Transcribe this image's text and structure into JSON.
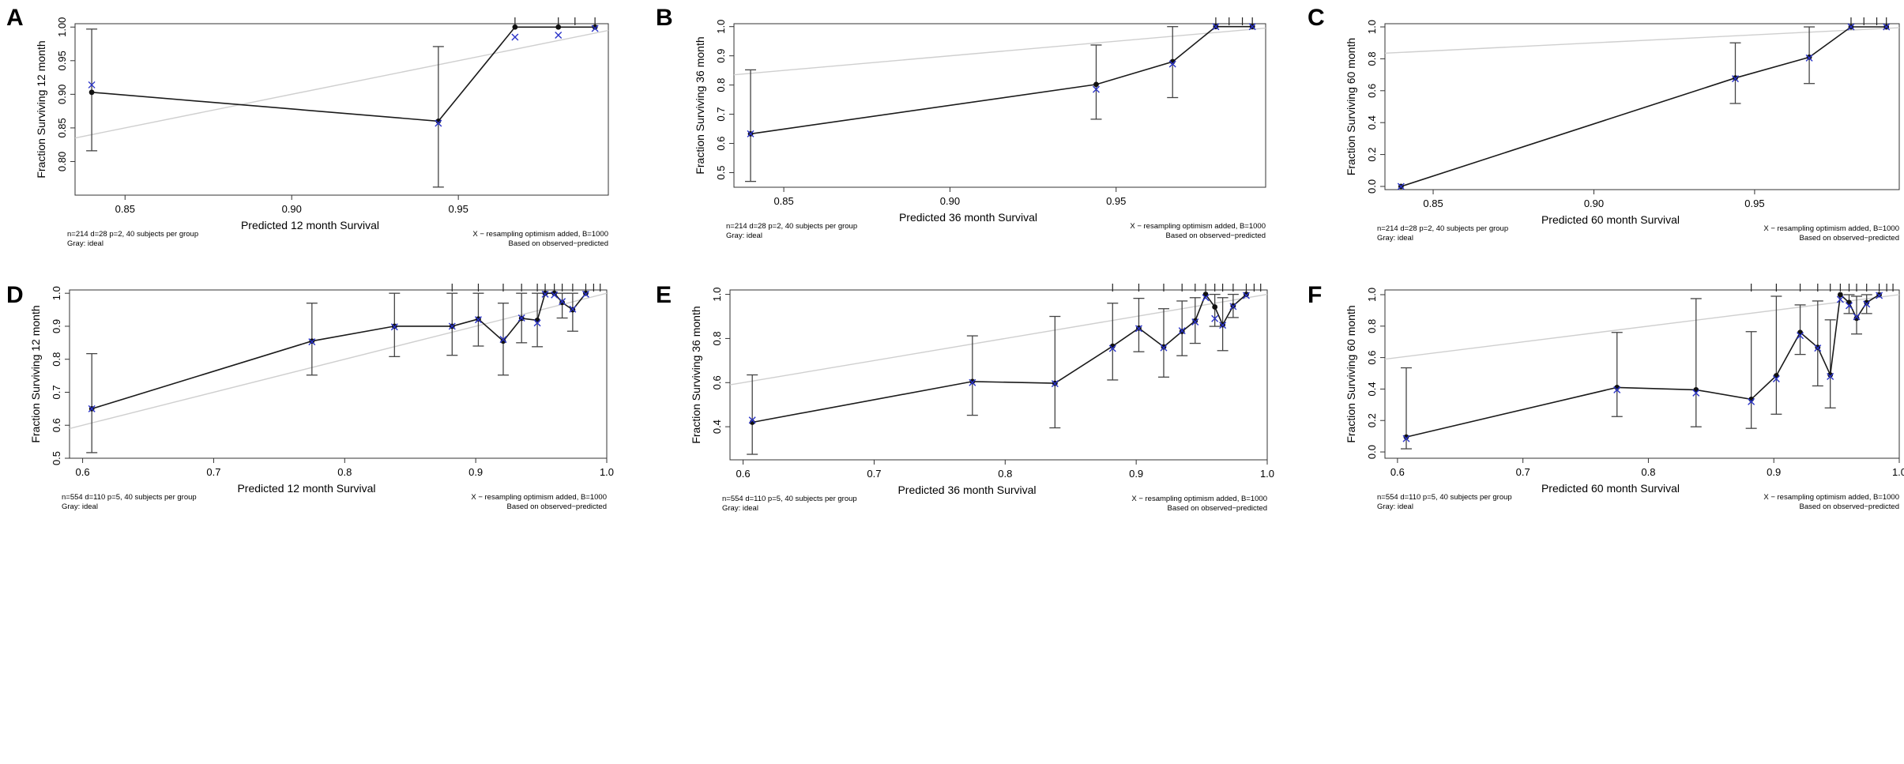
{
  "chart_data": [
    {
      "panel": "A",
      "type": "line",
      "title": "",
      "xlabel": "Predicted  12 month Survival",
      "ylabel": "Fraction Surviving 12 month",
      "xlim": [
        0.835,
        0.995
      ],
      "ylim": [
        0.75,
        1.005
      ],
      "xticks": [
        0.85,
        0.9,
        0.95
      ],
      "xtick_labels": [
        "0.85",
        "0.90",
        "0.95"
      ],
      "yticks": [
        0.8,
        0.85,
        0.9,
        0.95,
        1.0
      ],
      "ytick_labels": [
        "0.80",
        "0.85",
        "0.90",
        "0.95",
        "1.00"
      ],
      "ideal_line": [
        [
          0.835,
          0.835
        ],
        [
          0.995,
          0.995
        ]
      ],
      "series": [
        {
          "name": "observed",
          "x": [
            0.84,
            0.944,
            0.967,
            0.98,
            0.991
          ],
          "y": [
            0.903,
            0.86,
            1.0,
            1.0,
            1.0
          ]
        },
        {
          "name": "optimism-corrected (X)",
          "x": [
            0.84,
            0.944,
            0.967,
            0.98,
            0.991
          ],
          "y": [
            0.914,
            0.857,
            0.985,
            0.988,
            0.998
          ]
        }
      ],
      "error_bars": {
        "x": [
          0.84,
          0.944
        ],
        "lower": [
          0.816,
          0.762
        ],
        "upper": [
          0.997,
          0.971
        ]
      },
      "rug_x": [
        0.967,
        0.98,
        0.985,
        0.991
      ],
      "note_left_1": "n=214 d=28 p=2, 40 subjects per group",
      "note_left_2": "Gray: ideal",
      "note_right_1": "X − resampling optimism added, B=1000",
      "note_right_2": "Based on observed−predicted"
    },
    {
      "panel": "B",
      "type": "line",
      "title": "",
      "xlabel": "Predicted  36 month Survival",
      "ylabel": "Fraction Surviving 36 month",
      "xlim": [
        0.835,
        0.995
      ],
      "ylim": [
        0.45,
        1.01
      ],
      "xticks": [
        0.85,
        0.9,
        0.95
      ],
      "xtick_labels": [
        "0.85",
        "0.90",
        "0.95"
      ],
      "yticks": [
        0.5,
        0.6,
        0.7,
        0.8,
        0.9,
        1.0
      ],
      "ytick_labels": [
        "0.5",
        "0.6",
        "0.7",
        "0.8",
        "0.9",
        "1.0"
      ],
      "ideal_line": [
        [
          0.835,
          0.835
        ],
        [
          0.995,
          0.995
        ]
      ],
      "series": [
        {
          "name": "observed",
          "x": [
            0.84,
            0.944,
            0.967,
            0.98,
            0.991
          ],
          "y": [
            0.633,
            0.802,
            0.88,
            1.0,
            1.0
          ]
        },
        {
          "name": "optimism-corrected (X)",
          "x": [
            0.84,
            0.944,
            0.967,
            0.98,
            0.991
          ],
          "y": [
            0.633,
            0.785,
            0.872,
            1.0,
            1.0
          ]
        }
      ],
      "error_bars": {
        "x": [
          0.84,
          0.944,
          0.967
        ],
        "lower": [
          0.47,
          0.683,
          0.757
        ],
        "upper": [
          0.852,
          0.937,
          1.0
        ]
      },
      "rug_x": [
        0.98,
        0.984,
        0.988,
        0.991
      ],
      "note_left_1": "n=214 d=28 p=2, 40 subjects per group",
      "note_left_2": "Gray: ideal",
      "note_right_1": "X − resampling optimism added, B=1000",
      "note_right_2": "Based on observed−predicted"
    },
    {
      "panel": "C",
      "type": "line",
      "title": "",
      "xlabel": "Predicted  60 month Survival",
      "ylabel": "Fraction Surviving 60 month",
      "xlim": [
        0.835,
        0.995
      ],
      "ylim": [
        -0.02,
        1.02
      ],
      "xticks": [
        0.85,
        0.9,
        0.95
      ],
      "xtick_labels": [
        "0.85",
        "0.90",
        "0.95"
      ],
      "yticks": [
        0.0,
        0.2,
        0.4,
        0.6,
        0.8,
        1.0
      ],
      "ytick_labels": [
        "0.0",
        "0.2",
        "0.4",
        "0.6",
        "0.8",
        "1.0"
      ],
      "ideal_line": [
        [
          0.835,
          0.835
        ],
        [
          0.995,
          0.995
        ]
      ],
      "series": [
        {
          "name": "observed",
          "x": [
            0.84,
            0.944,
            0.967,
            0.98,
            0.991
          ],
          "y": [
            0.0,
            0.68,
            0.81,
            1.0,
            1.0
          ]
        },
        {
          "name": "optimism-corrected (X)",
          "x": [
            0.84,
            0.944,
            0.967,
            0.98,
            0.991
          ],
          "y": [
            0.0,
            0.675,
            0.805,
            1.0,
            1.0
          ]
        }
      ],
      "error_bars": {
        "x": [
          0.944,
          0.967
        ],
        "lower": [
          0.52,
          0.645
        ],
        "upper": [
          0.9,
          1.0
        ]
      },
      "rug_x": [
        0.98,
        0.984,
        0.988,
        0.991
      ],
      "note_left_1": "n=214 d=28 p=2, 40 subjects per group",
      "note_left_2": "Gray: ideal",
      "note_right_1": "X − resampling optimism added, B=1000",
      "note_right_2": "Based on observed−predicted"
    },
    {
      "panel": "D",
      "type": "line",
      "title": "",
      "xlabel": "Predicted  12 month Survival",
      "ylabel": "Fraction Surviving 12 month",
      "xlim": [
        0.59,
        1.0
      ],
      "ylim": [
        0.5,
        1.01
      ],
      "xticks": [
        0.6,
        0.7,
        0.8,
        0.9,
        1.0
      ],
      "xtick_labels": [
        "0.6",
        "0.7",
        "0.8",
        "0.9",
        "1.0"
      ],
      "yticks": [
        0.5,
        0.6,
        0.7,
        0.8,
        0.9,
        1.0
      ],
      "ytick_labels": [
        "0.5",
        "0.6",
        "0.7",
        "0.8",
        "0.9",
        "1.0"
      ],
      "ideal_line": [
        [
          0.59,
          0.59
        ],
        [
          1.0,
          1.0
        ]
      ],
      "series": [
        {
          "name": "observed",
          "x": [
            0.607,
            0.775,
            0.838,
            0.882,
            0.902,
            0.921,
            0.935,
            0.947,
            0.953,
            0.96,
            0.966,
            0.974,
            0.984
          ],
          "y": [
            0.65,
            0.855,
            0.9,
            0.9,
            0.922,
            0.855,
            0.924,
            0.918,
            1.0,
            1.0,
            0.972,
            0.95,
            1.0
          ]
        },
        {
          "name": "optimism-corrected (X)",
          "x": [
            0.607,
            0.775,
            0.838,
            0.882,
            0.902,
            0.921,
            0.935,
            0.947,
            0.953,
            0.96,
            0.966,
            0.974,
            0.984
          ],
          "y": [
            0.65,
            0.853,
            0.898,
            0.9,
            0.92,
            0.86,
            0.925,
            0.91,
            0.997,
            0.995,
            0.975,
            0.952,
            0.997
          ]
        }
      ],
      "error_bars": {
        "x": [
          0.607,
          0.775,
          0.838,
          0.882,
          0.902,
          0.921,
          0.935,
          0.947,
          0.966,
          0.974
        ],
        "lower": [
          0.517,
          0.752,
          0.808,
          0.812,
          0.84,
          0.752,
          0.85,
          0.838,
          0.925,
          0.885
        ],
        "upper": [
          0.817,
          0.97,
          1.0,
          1.0,
          1.0,
          0.97,
          1.0,
          1.0,
          1.0,
          1.0
        ]
      },
      "rug_x": [
        0.882,
        0.902,
        0.921,
        0.935,
        0.947,
        0.953,
        0.96,
        0.966,
        0.974,
        0.984,
        0.99,
        0.995
      ],
      "note_left_1": "n=554 d=110 p=5, 40 subjects per group",
      "note_left_2": "Gray: ideal",
      "note_right_1": "X − resampling optimism added, B=1000",
      "note_right_2": "Based on observed−predicted"
    },
    {
      "panel": "E",
      "type": "line",
      "title": "",
      "xlabel": "Predicted  36 month Survival",
      "ylabel": "Fraction Surviving 36 month",
      "xlim": [
        0.59,
        1.0
      ],
      "ylim": [
        0.25,
        1.02
      ],
      "xticks": [
        0.6,
        0.7,
        0.8,
        0.9,
        1.0
      ],
      "xtick_labels": [
        "0.6",
        "0.7",
        "0.8",
        "0.9",
        "1.0"
      ],
      "yticks": [
        0.4,
        0.6,
        0.8,
        1.0
      ],
      "ytick_labels": [
        "0.4",
        "0.6",
        "0.8",
        "1.0"
      ],
      "ideal_line": [
        [
          0.59,
          0.59
        ],
        [
          1.0,
          1.0
        ]
      ],
      "series": [
        {
          "name": "observed",
          "x": [
            0.607,
            0.775,
            0.838,
            0.882,
            0.902,
            0.921,
            0.935,
            0.945,
            0.953,
            0.96,
            0.966,
            0.974,
            0.984
          ],
          "y": [
            0.42,
            0.605,
            0.597,
            0.765,
            0.847,
            0.762,
            0.832,
            0.88,
            1.0,
            0.943,
            0.862,
            0.948,
            1.0
          ]
        },
        {
          "name": "optimism-corrected (X)",
          "x": [
            0.607,
            0.775,
            0.838,
            0.882,
            0.902,
            0.921,
            0.935,
            0.945,
            0.953,
            0.96,
            0.966,
            0.974,
            0.984
          ],
          "y": [
            0.43,
            0.6,
            0.595,
            0.755,
            0.845,
            0.758,
            0.835,
            0.875,
            0.985,
            0.89,
            0.86,
            0.945,
            0.995
          ]
        }
      ],
      "error_bars": {
        "x": [
          0.607,
          0.775,
          0.838,
          0.882,
          0.902,
          0.921,
          0.935,
          0.945,
          0.96,
          0.966,
          0.974
        ],
        "lower": [
          0.275,
          0.452,
          0.395,
          0.612,
          0.74,
          0.625,
          0.722,
          0.778,
          0.855,
          0.745,
          0.895
        ],
        "upper": [
          0.635,
          0.812,
          0.9,
          0.96,
          0.982,
          0.935,
          0.97,
          0.985,
          1.0,
          0.985,
          1.0
        ]
      },
      "rug_x": [
        0.882,
        0.902,
        0.921,
        0.935,
        0.945,
        0.953,
        0.96,
        0.966,
        0.974,
        0.984,
        0.99,
        0.995
      ],
      "note_left_1": "n=554 d=110 p=5, 40 subjects per group",
      "note_left_2": "Gray: ideal",
      "note_right_1": "X − resampling optimism added, B=1000",
      "note_right_2": "Based on observed−predicted"
    },
    {
      "panel": "F",
      "type": "line",
      "title": "",
      "xlabel": "Predicted  60 month Survival",
      "ylabel": "Fraction Surviving 60 month",
      "xlim": [
        0.59,
        1.0
      ],
      "ylim": [
        -0.04,
        1.03
      ],
      "xticks": [
        0.6,
        0.7,
        0.8,
        0.9,
        1.0
      ],
      "xtick_labels": [
        "0.6",
        "0.7",
        "0.8",
        "0.9",
        "1.0"
      ],
      "yticks": [
        0.0,
        0.2,
        0.4,
        0.6,
        0.8,
        1.0
      ],
      "ytick_labels": [
        "0.0",
        "0.2",
        "0.4",
        "0.6",
        "0.8",
        "1.0"
      ],
      "ideal_line": [
        [
          0.59,
          0.59
        ],
        [
          1.0,
          1.0
        ]
      ],
      "series": [
        {
          "name": "observed",
          "x": [
            0.607,
            0.775,
            0.838,
            0.882,
            0.902,
            0.921,
            0.935,
            0.945,
            0.953,
            0.96,
            0.966,
            0.974,
            0.984
          ],
          "y": [
            0.095,
            0.41,
            0.395,
            0.335,
            0.485,
            0.76,
            0.665,
            0.49,
            1.0,
            0.95,
            0.85,
            0.95,
            1.0
          ]
        },
        {
          "name": "optimism-corrected (X)",
          "x": [
            0.607,
            0.775,
            0.838,
            0.882,
            0.902,
            0.921,
            0.935,
            0.945,
            0.953,
            0.96,
            0.966,
            0.974,
            0.984
          ],
          "y": [
            0.085,
            0.395,
            0.375,
            0.32,
            0.465,
            0.74,
            0.66,
            0.48,
            0.97,
            0.93,
            0.86,
            0.94,
            0.995
          ]
        }
      ],
      "error_bars": {
        "x": [
          0.607,
          0.775,
          0.838,
          0.882,
          0.902,
          0.921,
          0.935,
          0.945,
          0.96,
          0.966,
          0.974
        ],
        "lower": [
          0.02,
          0.225,
          0.16,
          0.15,
          0.24,
          0.62,
          0.42,
          0.28,
          0.88,
          0.75,
          0.88
        ],
        "upper": [
          0.535,
          0.76,
          0.975,
          0.765,
          0.99,
          0.935,
          0.96,
          0.84,
          1.0,
          0.99,
          1.0
        ]
      },
      "rug_x": [
        0.882,
        0.902,
        0.921,
        0.935,
        0.945,
        0.953,
        0.96,
        0.966,
        0.974,
        0.984,
        0.99,
        0.995
      ],
      "note_left_1": "n=554 d=110 p=5, 40 subjects per group",
      "note_left_2": "Gray: ideal",
      "note_right_1": "X − resampling optimism added, B=1000",
      "note_right_2": "Based on observed−predicted"
    }
  ],
  "colors": {
    "observed_line": "#1a1a1a",
    "observed_point": "#111111",
    "corrected_marker": "#2a33c8",
    "ideal_line": "#cfcfcf",
    "frame": "#333333",
    "error_bar": "#444444"
  }
}
